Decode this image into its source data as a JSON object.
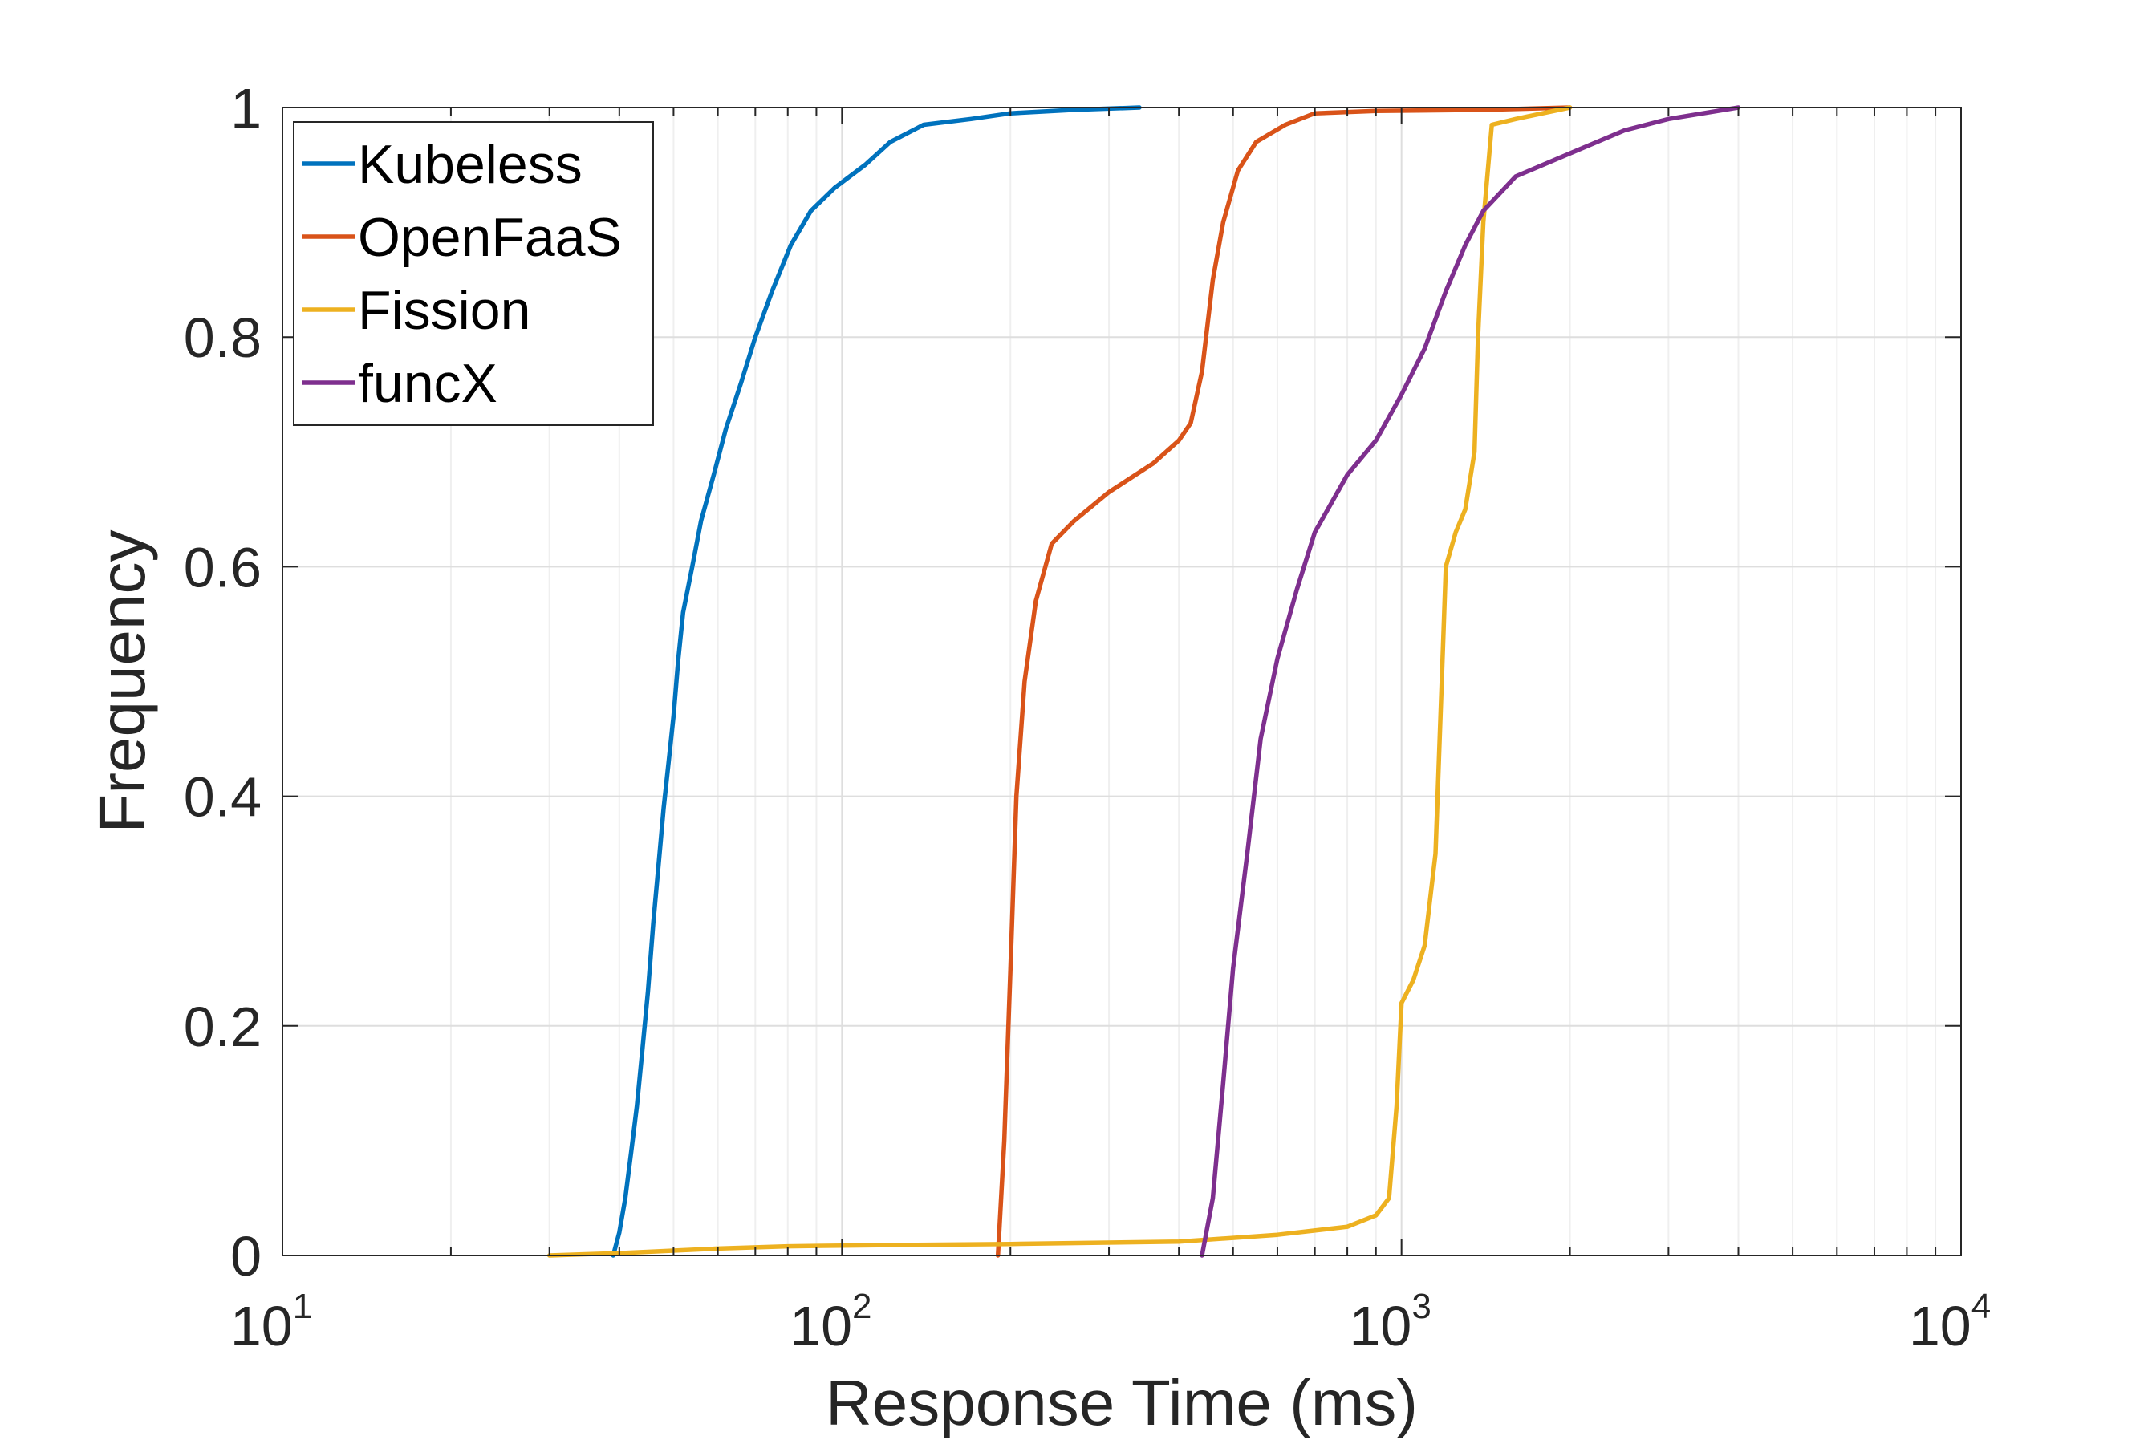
{
  "chart_data": {
    "type": "line",
    "title": "",
    "xlabel": "Response Time (ms)",
    "ylabel": "Frequency",
    "xscale": "log",
    "xlim": [
      10,
      10000
    ],
    "ylim": [
      0,
      1
    ],
    "grid": true,
    "legend_position": "top-left",
    "x_ticks": [
      {
        "base": "10",
        "exp": "1"
      },
      {
        "base": "10",
        "exp": "2"
      },
      {
        "base": "10",
        "exp": "3"
      },
      {
        "base": "10",
        "exp": "4"
      }
    ],
    "y_ticks": [
      "0",
      "0.2",
      "0.4",
      "0.6",
      "0.8",
      "1"
    ],
    "series": [
      {
        "name": "Kubeless",
        "color": "#0072BD",
        "points": [
          [
            39,
            0
          ],
          [
            40,
            0.02
          ],
          [
            41,
            0.05
          ],
          [
            42,
            0.09
          ],
          [
            43,
            0.13
          ],
          [
            44,
            0.18
          ],
          [
            45,
            0.23
          ],
          [
            46,
            0.29
          ],
          [
            47,
            0.34
          ],
          [
            48,
            0.39
          ],
          [
            49,
            0.43
          ],
          [
            50,
            0.47
          ],
          [
            51,
            0.52
          ],
          [
            52,
            0.56
          ],
          [
            54,
            0.6
          ],
          [
            56,
            0.64
          ],
          [
            59,
            0.68
          ],
          [
            62,
            0.72
          ],
          [
            66,
            0.76
          ],
          [
            70,
            0.8
          ],
          [
            75,
            0.84
          ],
          [
            81,
            0.88
          ],
          [
            88,
            0.91
          ],
          [
            97,
            0.93
          ],
          [
            110,
            0.95
          ],
          [
            122,
            0.97
          ],
          [
            140,
            0.985
          ],
          [
            170,
            0.99
          ],
          [
            200,
            0.995
          ],
          [
            260,
            0.998
          ],
          [
            340,
            1.0
          ]
        ]
      },
      {
        "name": "OpenFaaS",
        "color": "#D95319",
        "points": [
          [
            190,
            0
          ],
          [
            195,
            0.1
          ],
          [
            200,
            0.25
          ],
          [
            205,
            0.4
          ],
          [
            212,
            0.5
          ],
          [
            222,
            0.57
          ],
          [
            237,
            0.62
          ],
          [
            260,
            0.64
          ],
          [
            300,
            0.665
          ],
          [
            360,
            0.69
          ],
          [
            400,
            0.71
          ],
          [
            420,
            0.725
          ],
          [
            440,
            0.77
          ],
          [
            460,
            0.85
          ],
          [
            480,
            0.9
          ],
          [
            510,
            0.945
          ],
          [
            550,
            0.97
          ],
          [
            620,
            0.985
          ],
          [
            700,
            0.995
          ],
          [
            900,
            0.997
          ],
          [
            1400,
            0.998
          ],
          [
            2000,
            1.0
          ]
        ]
      },
      {
        "name": "Fission",
        "color": "#EDB120",
        "points": [
          [
            30,
            0
          ],
          [
            40,
            0.002
          ],
          [
            60,
            0.006
          ],
          [
            80,
            0.008
          ],
          [
            120,
            0.009
          ],
          [
            200,
            0.01
          ],
          [
            400,
            0.012
          ],
          [
            600,
            0.018
          ],
          [
            800,
            0.025
          ],
          [
            900,
            0.035
          ],
          [
            950,
            0.05
          ],
          [
            980,
            0.13
          ],
          [
            1000,
            0.22
          ],
          [
            1050,
            0.24
          ],
          [
            1100,
            0.27
          ],
          [
            1150,
            0.35
          ],
          [
            1180,
            0.5
          ],
          [
            1200,
            0.6
          ],
          [
            1250,
            0.63
          ],
          [
            1300,
            0.65
          ],
          [
            1350,
            0.7
          ],
          [
            1370,
            0.8
          ],
          [
            1400,
            0.9
          ],
          [
            1450,
            0.985
          ],
          [
            1600,
            0.99
          ],
          [
            2000,
            1.0
          ]
        ]
      },
      {
        "name": "funcX",
        "color": "#7E2F8E",
        "points": [
          [
            440,
            0
          ],
          [
            460,
            0.05
          ],
          [
            480,
            0.15
          ],
          [
            500,
            0.25
          ],
          [
            530,
            0.35
          ],
          [
            560,
            0.45
          ],
          [
            600,
            0.52
          ],
          [
            650,
            0.58
          ],
          [
            700,
            0.63
          ],
          [
            800,
            0.68
          ],
          [
            900,
            0.71
          ],
          [
            1000,
            0.75
          ],
          [
            1100,
            0.79
          ],
          [
            1200,
            0.84
          ],
          [
            1300,
            0.88
          ],
          [
            1400,
            0.91
          ],
          [
            1600,
            0.94
          ],
          [
            2000,
            0.96
          ],
          [
            2500,
            0.98
          ],
          [
            3000,
            0.99
          ],
          [
            4000,
            1.0
          ]
        ]
      }
    ]
  }
}
